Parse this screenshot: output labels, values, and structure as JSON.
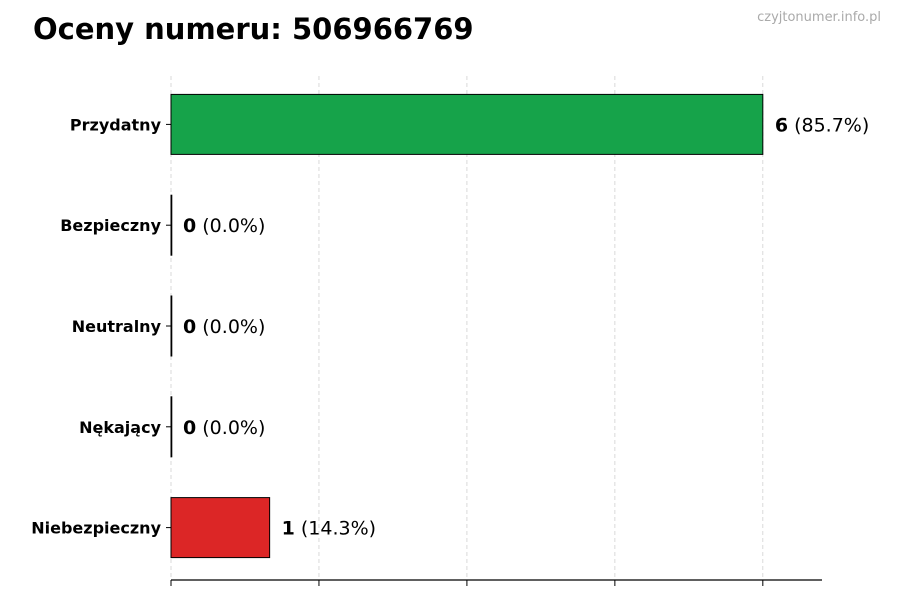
{
  "header": {
    "title": "Oceny numeru: 506966769",
    "watermark": "czyjtonumer.info.pl"
  },
  "chart_data": {
    "type": "bar",
    "orientation": "horizontal",
    "title": "Oceny numeru: 506966769",
    "categories": [
      "Przydatny",
      "Bezpieczny",
      "Neutralny",
      "Nękający",
      "Niebezpieczny"
    ],
    "values": [
      6,
      0,
      0,
      0,
      1
    ],
    "percent_labels": [
      "(85.7%)",
      "(0.0%)",
      "(0.0%)",
      "(0.0%)",
      "(14.3%)"
    ],
    "colors": [
      "#16a34a",
      "#9ca3af",
      "#9ca3af",
      "#f59e0b",
      "#dc2626"
    ],
    "xlim": [
      0,
      6.6
    ],
    "xticks": [
      0,
      1.5,
      3,
      4.5,
      6
    ],
    "xtick_labels_shown": false,
    "grid": "vertical dashed",
    "xlabel": "",
    "ylabel": ""
  }
}
